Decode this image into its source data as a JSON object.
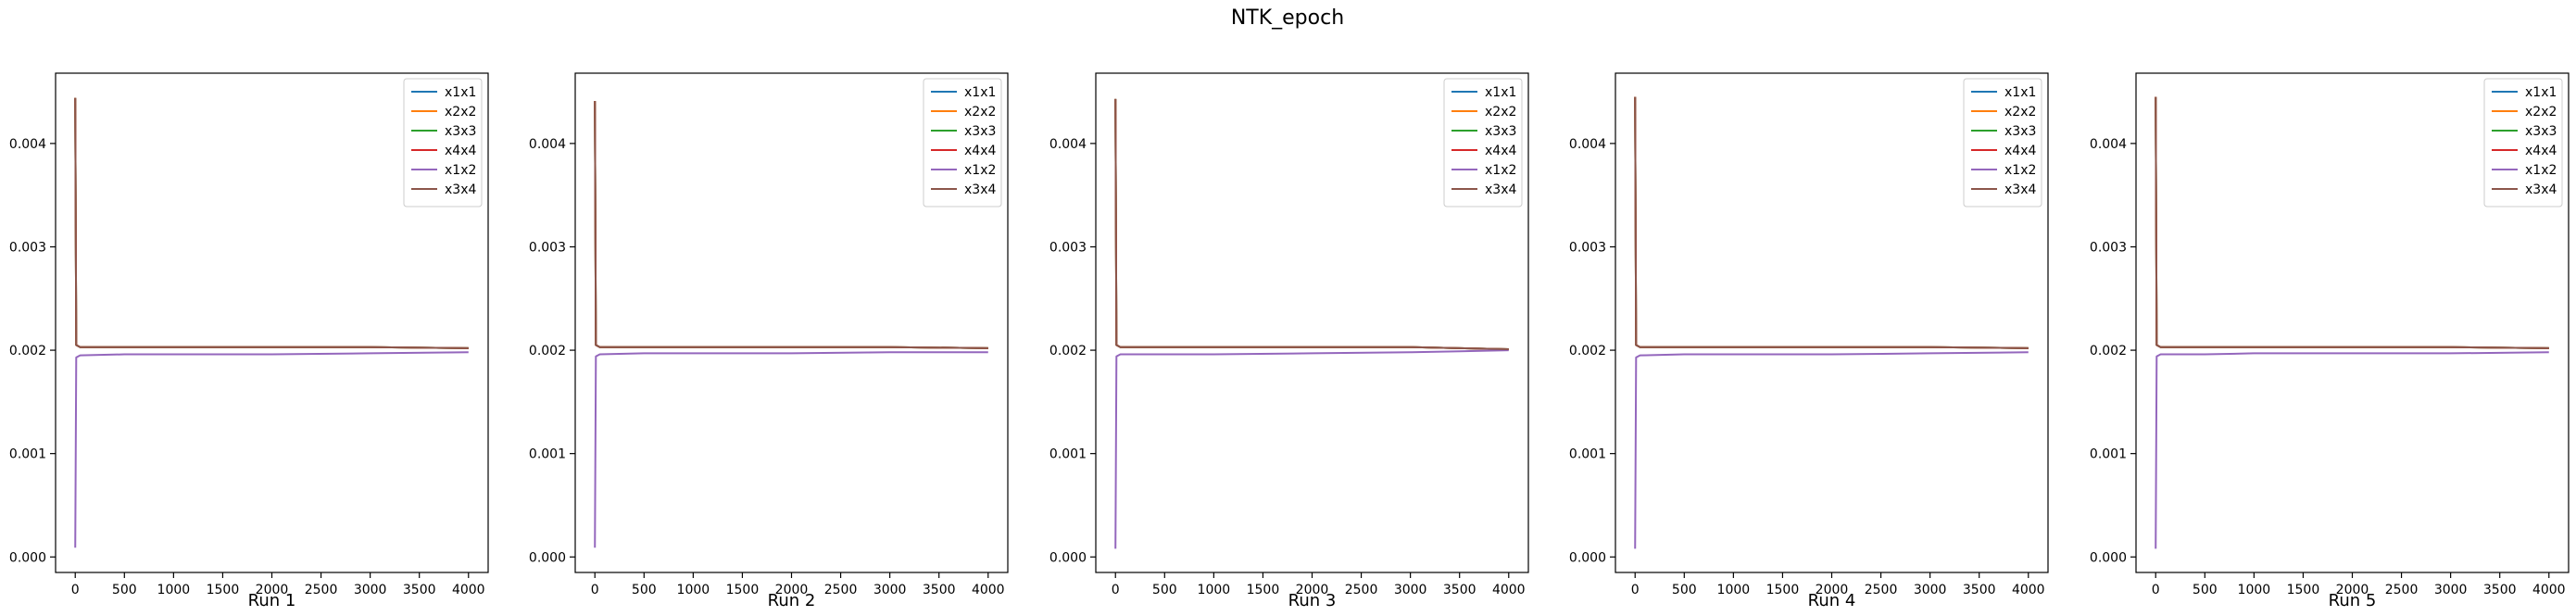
{
  "figure": {
    "suptitle": "NTK_epoch"
  },
  "colors": {
    "x1x1": "#1f77b4",
    "x2x2": "#ff7f0e",
    "x3x3": "#2ca02c",
    "x4x4": "#d62728",
    "x1x2": "#9467bd",
    "x3x4": "#8c564b"
  },
  "chart_data": [
    {
      "type": "line",
      "xlabel": "Run 1",
      "ylabel": "",
      "xlim": [
        -200,
        4200
      ],
      "ylim": [
        -0.00015,
        0.00468
      ],
      "xticks": [
        0,
        500,
        1000,
        1500,
        2000,
        2500,
        3000,
        3500,
        4000
      ],
      "yticks": [
        0.0,
        0.001,
        0.002,
        0.003,
        0.004
      ],
      "ytick_labels": [
        "0.000",
        "0.001",
        "0.002",
        "0.003",
        "0.004"
      ],
      "legend_position": "upper right",
      "series": [
        {
          "name": "x1x1",
          "x": [
            0,
            10,
            50,
            500,
            1000,
            2000,
            3000,
            4000
          ],
          "y": [
            0.00444,
            0.00205,
            0.00203,
            0.00203,
            0.00203,
            0.00203,
            0.00203,
            0.00202
          ]
        },
        {
          "name": "x2x2",
          "x": [
            0,
            10,
            50,
            500,
            1000,
            2000,
            3000,
            4000
          ],
          "y": [
            0.00444,
            0.00205,
            0.00203,
            0.00203,
            0.00203,
            0.00203,
            0.00203,
            0.00202
          ]
        },
        {
          "name": "x3x3",
          "x": [
            0,
            10,
            50,
            500,
            1000,
            2000,
            3000,
            4000
          ],
          "y": [
            0.00444,
            0.00205,
            0.00203,
            0.00203,
            0.00203,
            0.00203,
            0.00203,
            0.00202
          ]
        },
        {
          "name": "x4x4",
          "x": [
            0,
            10,
            50,
            500,
            1000,
            2000,
            3000,
            4000
          ],
          "y": [
            0.00444,
            0.00205,
            0.00203,
            0.00203,
            0.00203,
            0.00203,
            0.00203,
            0.00202
          ]
        },
        {
          "name": "x1x2",
          "x": [
            0,
            10,
            50,
            500,
            1000,
            2000,
            3000,
            4000
          ],
          "y": [
            9e-05,
            0.00193,
            0.00195,
            0.00196,
            0.00196,
            0.00196,
            0.00197,
            0.00198
          ]
        },
        {
          "name": "x3x4",
          "x": [
            0,
            10,
            50,
            500,
            1000,
            2000,
            3000,
            4000
          ],
          "y": [
            0.00444,
            0.00205,
            0.00203,
            0.00203,
            0.00203,
            0.00203,
            0.00203,
            0.00202
          ]
        }
      ]
    },
    {
      "type": "line",
      "xlabel": "Run 2",
      "ylabel": "",
      "xlim": [
        -200,
        4200
      ],
      "ylim": [
        -0.00015,
        0.00468
      ],
      "xticks": [
        0,
        500,
        1000,
        1500,
        2000,
        2500,
        3000,
        3500,
        4000
      ],
      "yticks": [
        0.0,
        0.001,
        0.002,
        0.003,
        0.004
      ],
      "ytick_labels": [
        "0.000",
        "0.001",
        "0.002",
        "0.003",
        "0.004"
      ],
      "legend_position": "upper right",
      "series": [
        {
          "name": "x1x1",
          "x": [
            0,
            10,
            50,
            500,
            1000,
            2000,
            3000,
            4000
          ],
          "y": [
            0.00441,
            0.00205,
            0.00203,
            0.00203,
            0.00203,
            0.00203,
            0.00203,
            0.00202
          ]
        },
        {
          "name": "x2x2",
          "x": [
            0,
            10,
            50,
            500,
            1000,
            2000,
            3000,
            4000
          ],
          "y": [
            0.00441,
            0.00205,
            0.00203,
            0.00203,
            0.00203,
            0.00203,
            0.00203,
            0.00202
          ]
        },
        {
          "name": "x3x3",
          "x": [
            0,
            10,
            50,
            500,
            1000,
            2000,
            3000,
            4000
          ],
          "y": [
            0.00441,
            0.00205,
            0.00203,
            0.00203,
            0.00203,
            0.00203,
            0.00203,
            0.00202
          ]
        },
        {
          "name": "x4x4",
          "x": [
            0,
            10,
            50,
            500,
            1000,
            2000,
            3000,
            4000
          ],
          "y": [
            0.00441,
            0.00205,
            0.00203,
            0.00203,
            0.00203,
            0.00203,
            0.00203,
            0.00202
          ]
        },
        {
          "name": "x1x2",
          "x": [
            0,
            10,
            50,
            500,
            1000,
            2000,
            3000,
            4000
          ],
          "y": [
            9e-05,
            0.00194,
            0.00196,
            0.00197,
            0.00197,
            0.00197,
            0.00198,
            0.00198
          ]
        },
        {
          "name": "x3x4",
          "x": [
            0,
            10,
            50,
            500,
            1000,
            2000,
            3000,
            4000
          ],
          "y": [
            0.00441,
            0.00205,
            0.00203,
            0.00203,
            0.00203,
            0.00203,
            0.00203,
            0.00202
          ]
        }
      ]
    },
    {
      "type": "line",
      "xlabel": "Run 3",
      "ylabel": "",
      "xlim": [
        -200,
        4200
      ],
      "ylim": [
        -0.00015,
        0.00468
      ],
      "xticks": [
        0,
        500,
        1000,
        1500,
        2000,
        2500,
        3000,
        3500,
        4000
      ],
      "yticks": [
        0.0,
        0.001,
        0.002,
        0.003,
        0.004
      ],
      "ytick_labels": [
        "0.000",
        "0.001",
        "0.002",
        "0.003",
        "0.004"
      ],
      "legend_position": "upper right",
      "series": [
        {
          "name": "x1x1",
          "x": [
            0,
            10,
            50,
            500,
            1000,
            2000,
            3000,
            3500,
            4000
          ],
          "y": [
            0.00443,
            0.00205,
            0.00203,
            0.00203,
            0.00203,
            0.00203,
            0.00203,
            0.00202,
            0.00201
          ]
        },
        {
          "name": "x2x2",
          "x": [
            0,
            10,
            50,
            500,
            1000,
            2000,
            3000,
            3500,
            4000
          ],
          "y": [
            0.00443,
            0.00205,
            0.00203,
            0.00203,
            0.00203,
            0.00203,
            0.00203,
            0.00202,
            0.00201
          ]
        },
        {
          "name": "x3x3",
          "x": [
            0,
            10,
            50,
            500,
            1000,
            2000,
            3000,
            3500,
            4000
          ],
          "y": [
            0.00443,
            0.00205,
            0.00203,
            0.00203,
            0.00203,
            0.00203,
            0.00203,
            0.00202,
            0.00201
          ]
        },
        {
          "name": "x4x4",
          "x": [
            0,
            10,
            50,
            500,
            1000,
            2000,
            3000,
            3500,
            4000
          ],
          "y": [
            0.00443,
            0.00205,
            0.00203,
            0.00203,
            0.00203,
            0.00203,
            0.00203,
            0.00202,
            0.00201
          ]
        },
        {
          "name": "x1x2",
          "x": [
            0,
            10,
            50,
            500,
            1000,
            2000,
            3000,
            3500,
            4000
          ],
          "y": [
            8e-05,
            0.00194,
            0.00196,
            0.00196,
            0.00196,
            0.00197,
            0.00198,
            0.00199,
            0.002
          ]
        },
        {
          "name": "x3x4",
          "x": [
            0,
            10,
            50,
            500,
            1000,
            2000,
            3000,
            3500,
            4000
          ],
          "y": [
            0.00443,
            0.00205,
            0.00203,
            0.00203,
            0.00203,
            0.00203,
            0.00203,
            0.00202,
            0.00201
          ]
        }
      ]
    },
    {
      "type": "line",
      "xlabel": "Run 4",
      "ylabel": "",
      "xlim": [
        -200,
        4200
      ],
      "ylim": [
        -0.00015,
        0.00468
      ],
      "xticks": [
        0,
        500,
        1000,
        1500,
        2000,
        2500,
        3000,
        3500,
        4000
      ],
      "yticks": [
        0.0,
        0.001,
        0.002,
        0.003,
        0.004
      ],
      "ytick_labels": [
        "0.000",
        "0.001",
        "0.002",
        "0.003",
        "0.004"
      ],
      "legend_position": "upper right",
      "series": [
        {
          "name": "x1x1",
          "x": [
            0,
            10,
            50,
            500,
            1000,
            2000,
            3000,
            4000
          ],
          "y": [
            0.00445,
            0.00205,
            0.00203,
            0.00203,
            0.00203,
            0.00203,
            0.00203,
            0.00202
          ]
        },
        {
          "name": "x2x2",
          "x": [
            0,
            10,
            50,
            500,
            1000,
            2000,
            3000,
            4000
          ],
          "y": [
            0.00445,
            0.00205,
            0.00203,
            0.00203,
            0.00203,
            0.00203,
            0.00203,
            0.00202
          ]
        },
        {
          "name": "x3x3",
          "x": [
            0,
            10,
            50,
            500,
            1000,
            2000,
            3000,
            4000
          ],
          "y": [
            0.00445,
            0.00205,
            0.00203,
            0.00203,
            0.00203,
            0.00203,
            0.00203,
            0.00202
          ]
        },
        {
          "name": "x4x4",
          "x": [
            0,
            10,
            50,
            500,
            1000,
            2000,
            3000,
            4000
          ],
          "y": [
            0.00445,
            0.00205,
            0.00203,
            0.00203,
            0.00203,
            0.00203,
            0.00203,
            0.00202
          ]
        },
        {
          "name": "x1x2",
          "x": [
            0,
            10,
            50,
            500,
            1000,
            2000,
            3000,
            4000
          ],
          "y": [
            8e-05,
            0.00193,
            0.00195,
            0.00196,
            0.00196,
            0.00196,
            0.00197,
            0.00198
          ]
        },
        {
          "name": "x3x4",
          "x": [
            0,
            10,
            50,
            500,
            1000,
            2000,
            3000,
            4000
          ],
          "y": [
            0.00445,
            0.00205,
            0.00203,
            0.00203,
            0.00203,
            0.00203,
            0.00203,
            0.00202
          ]
        }
      ]
    },
    {
      "type": "line",
      "xlabel": "Run 5",
      "ylabel": "",
      "xlim": [
        -200,
        4200
      ],
      "ylim": [
        -0.00015,
        0.00468
      ],
      "xticks": [
        0,
        500,
        1000,
        1500,
        2000,
        2500,
        3000,
        3500,
        4000
      ],
      "yticks": [
        0.0,
        0.001,
        0.002,
        0.003,
        0.004
      ],
      "ytick_labels": [
        "0.000",
        "0.001",
        "0.002",
        "0.003",
        "0.004"
      ],
      "legend_position": "upper right",
      "series": [
        {
          "name": "x1x1",
          "x": [
            0,
            10,
            50,
            500,
            1000,
            2000,
            3000,
            4000
          ],
          "y": [
            0.00445,
            0.00205,
            0.00203,
            0.00203,
            0.00203,
            0.00203,
            0.00203,
            0.00202
          ]
        },
        {
          "name": "x2x2",
          "x": [
            0,
            10,
            50,
            500,
            1000,
            2000,
            3000,
            4000
          ],
          "y": [
            0.00445,
            0.00205,
            0.00203,
            0.00203,
            0.00203,
            0.00203,
            0.00203,
            0.00202
          ]
        },
        {
          "name": "x3x3",
          "x": [
            0,
            10,
            50,
            500,
            1000,
            2000,
            3000,
            4000
          ],
          "y": [
            0.00445,
            0.00205,
            0.00203,
            0.00203,
            0.00203,
            0.00203,
            0.00203,
            0.00202
          ]
        },
        {
          "name": "x4x4",
          "x": [
            0,
            10,
            50,
            500,
            1000,
            2000,
            3000,
            4000
          ],
          "y": [
            0.00445,
            0.00205,
            0.00203,
            0.00203,
            0.00203,
            0.00203,
            0.00203,
            0.00202
          ]
        },
        {
          "name": "x1x2",
          "x": [
            0,
            10,
            50,
            500,
            1000,
            2000,
            3000,
            4000
          ],
          "y": [
            8e-05,
            0.00194,
            0.00196,
            0.00196,
            0.00197,
            0.00197,
            0.00197,
            0.00198
          ]
        },
        {
          "name": "x3x4",
          "x": [
            0,
            10,
            50,
            500,
            1000,
            2000,
            3000,
            4000
          ],
          "y": [
            0.00445,
            0.00205,
            0.00203,
            0.00203,
            0.00203,
            0.00203,
            0.00203,
            0.00202
          ]
        }
      ]
    }
  ]
}
